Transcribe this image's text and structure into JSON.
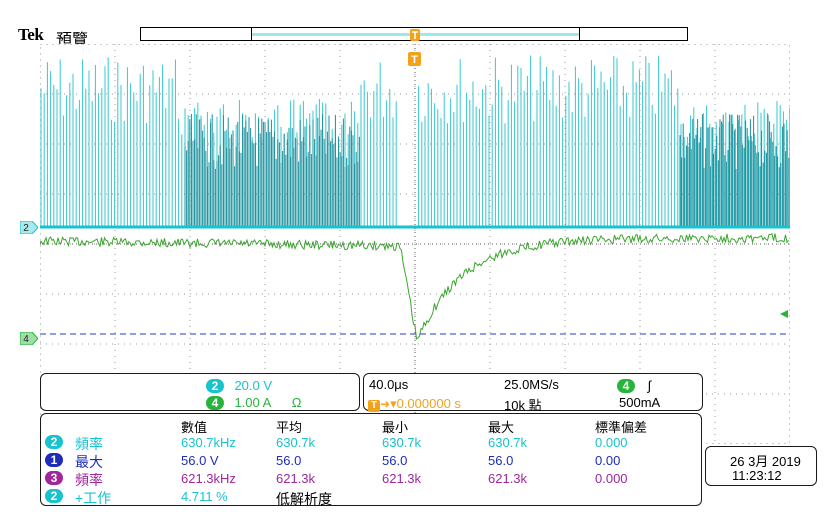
{
  "header": {
    "brand": "Tek",
    "mode": "預覽"
  },
  "markers": {
    "ch2": "2",
    "ch4": "4",
    "trigger": "T"
  },
  "channels": [
    {
      "num": "2",
      "scale": "20.0 V",
      "color": "#17c3cf"
    },
    {
      "num": "4",
      "scale": "1.00 A",
      "extra": "Ω",
      "color": "#26b53a"
    }
  ],
  "acquisition": {
    "timebase": "40.0μs",
    "samplerate": "25.0MS/s",
    "trig_offset": "▾0.000000 s",
    "record_length": "10k 點",
    "trig_source": "4",
    "trig_slope": "∫",
    "trig_level": "500mA"
  },
  "measurements": {
    "headers": [
      "數值",
      "平均",
      "最小",
      "最大",
      "標準偏差"
    ],
    "rows": [
      {
        "ch": "2",
        "name": "頻率",
        "value": "630.7kHz",
        "mean": "630.7k",
        "min": "630.7k",
        "max": "630.7k",
        "std": "0.000",
        "color": "#17c3cf"
      },
      {
        "ch": "1",
        "name": "最大",
        "value": "56.0 V",
        "mean": "56.0",
        "min": "56.0",
        "max": "56.0",
        "std": "0.00",
        "color": "#1d2db8"
      },
      {
        "ch": "3",
        "name": "頻率",
        "value": "621.3kHz",
        "mean": "621.3k",
        "min": "621.3k",
        "max": "621.3k",
        "std": "0.000",
        "color": "#a0269d"
      },
      {
        "ch": "2",
        "name": "+工作",
        "value": "4.711 %",
        "mean": "低解析度",
        "min": "",
        "max": "",
        "std": "",
        "color": "#17c3cf"
      }
    ]
  },
  "datetime": {
    "date": "26 3月 2019",
    "time": "11:23:12"
  }
}
